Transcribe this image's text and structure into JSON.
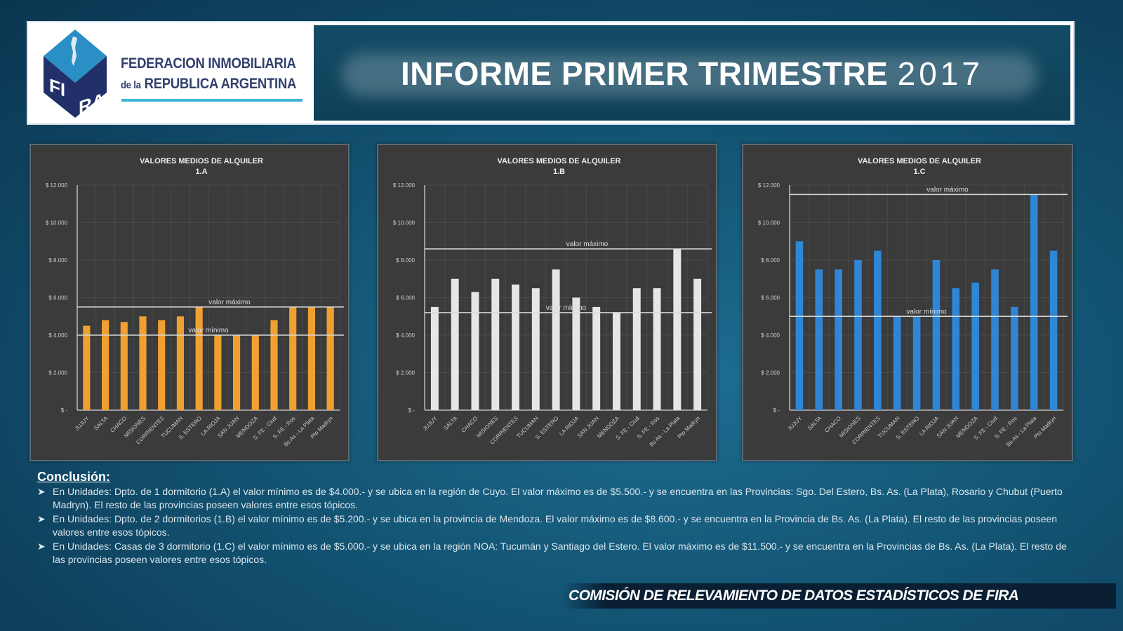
{
  "header": {
    "logo_text": "FIRA",
    "org_line1": "FEDERACION INMOBILIARIA",
    "org_line2_prefix": "de la",
    "org_line2": "REPUBLICA ARGENTINA",
    "title": "INFORME PRIMER TRIMESTRE",
    "year": "2017"
  },
  "colors": {
    "chart_1a": "#f0a030",
    "chart_1b": "#e6e6e6",
    "chart_1c": "#2f86d6",
    "panel_bg": "#3b3b3b"
  },
  "chart_data": [
    {
      "type": "bar",
      "title": "VALORES MEDIOS DE ALQUILER",
      "subtitle": "1.A",
      "categories": [
        "JUJUY",
        "SALTA",
        "CHACO",
        "MISIONES",
        "CORRIENTES",
        "TUCUMAN",
        "S. ESTERO",
        "LA RIOJA",
        "SAN JUAN",
        "MENDOZA",
        "S. FE - Ciud",
        "S. FE - Ros",
        "Bs As - La Plata",
        "Pto Madryn"
      ],
      "values": [
        4500,
        4800,
        4700,
        5000,
        4800,
        5000,
        5500,
        4000,
        4000,
        4000,
        4800,
        5500,
        5500,
        5500
      ],
      "ylim": [
        0,
        12000
      ],
      "yticks": [
        "$ -",
        "$ 2.000",
        "$ 4.000",
        "$ 6.000",
        "$ 8.000",
        "$ 10.000",
        "$ 12.000"
      ],
      "reference_lines": [
        {
          "label": "valor máximo",
          "value": 5500
        },
        {
          "label": "valor mínimo",
          "value": 4000
        }
      ],
      "grid": true,
      "color": "#f0a030"
    },
    {
      "type": "bar",
      "title": "VALORES MEDIOS DE ALQUILER",
      "subtitle": "1.B",
      "categories": [
        "JUJUY",
        "SALTA",
        "CHACO",
        "MISIONES",
        "CORRIENTES",
        "TUCUMAN",
        "S. ESTERO",
        "LA RIOJA",
        "SAN JUAN",
        "MENDOZA",
        "S. FE - Ciud",
        "S. FE - Ros",
        "Bs As - La Plata",
        "Pto Madryn"
      ],
      "values": [
        5500,
        7000,
        6300,
        7000,
        6700,
        6500,
        7500,
        6000,
        5500,
        5200,
        6500,
        6500,
        8600,
        7000
      ],
      "ylim": [
        0,
        12000
      ],
      "yticks": [
        "$ -",
        "$ 2.000",
        "$ 4.000",
        "$ 6.000",
        "$ 8.000",
        "$ 10.000",
        "$ 12.000"
      ],
      "reference_lines": [
        {
          "label": "valor máximo",
          "value": 8600
        },
        {
          "label": "valor mínimo",
          "value": 5200
        }
      ],
      "grid": true,
      "color": "#e6e6e6"
    },
    {
      "type": "bar",
      "title": "VALORES MEDIOS DE ALQUILER",
      "subtitle": "1.C",
      "categories": [
        "JUJUY",
        "SALTA",
        "CHACO",
        "MISIONES",
        "CORRIENTES",
        "TUCUMAN",
        "S. ESTERO",
        "LA RIOJA",
        "SAN JUAN",
        "MENDOZA",
        "S. FE - Ciud",
        "S. FE - Ros",
        "Bs As - La Plata",
        "Pto Madryn"
      ],
      "values": [
        9000,
        7500,
        7500,
        8000,
        8500,
        5000,
        5000,
        8000,
        6500,
        6800,
        7500,
        5500,
        11500,
        8500
      ],
      "ylim": [
        0,
        12000
      ],
      "yticks": [
        "$ -",
        "$ 2.000",
        "$ 4.000",
        "$ 6.000",
        "$ 8.000",
        "$ 10.000",
        "$ 12.000"
      ],
      "reference_lines": [
        {
          "label": "valor máximo",
          "value": 11500
        },
        {
          "label": "valor mínimo",
          "value": 5000
        }
      ],
      "grid": true,
      "color": "#2f86d6"
    }
  ],
  "conclusion": {
    "title": "Conclusión:",
    "bullet_icon": "arrowhead-bullet",
    "items": [
      "En Unidades: Dpto. de 1 dormitorio (1.A) el valor mínimo es de $4.000.- y se ubica en la región de Cuyo. El valor máximo es de $5.500.- y se encuentra en las Provincias: Sgo. Del Estero, Bs. As. (La Plata), Rosario y Chubut (Puerto Madryn). El resto de las provincias poseen valores entre esos tópicos.",
      "En Unidades: Dpto. de 2 dormitorios (1.B) el valor mínimo es de $5.200.- y se ubica en la provincia de Mendoza. El valor máximo es de $8.600.- y se encuentra en la Provincia de Bs. As. (La Plata). El resto de las provincias poseen valores entre esos tópicos.",
      "En Unidades: Casas de 3 dormitorio (1.C) el valor mínimo es de $5.000.- y se ubica en la región NOA: Tucumán y Santiago del Estero. El valor máximo es de $11.500.- y se encuentra en la Provincias de Bs. As. (La Plata). El resto de las provincias poseen valores entre esos tópicos."
    ]
  },
  "footer": {
    "text": "COMISIÓN DE RELEVAMIENTO DE DATOS ESTADÍSTICOS DE FIRA"
  }
}
